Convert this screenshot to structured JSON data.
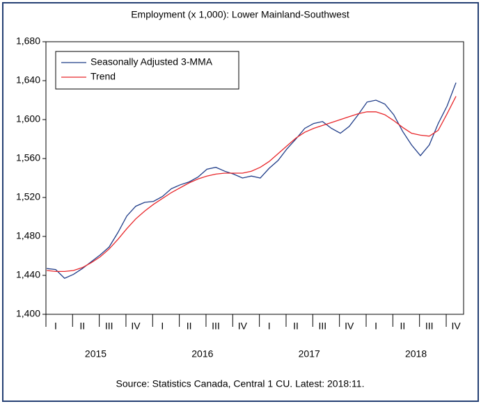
{
  "chart_data": {
    "type": "line",
    "title": "Employment (x 1,000): Lower Mainland-Southwest",
    "source": "Source:  Statistics Canada, Central 1 CU. Latest: 2018:11.",
    "categories": [
      null,
      "I",
      null,
      null,
      "II",
      null,
      null,
      "III",
      null,
      null,
      "IV",
      null,
      null,
      "I",
      null,
      null,
      "II",
      null,
      null,
      "III",
      null,
      null,
      "IV",
      null,
      null,
      "I",
      null,
      null,
      "II",
      null,
      null,
      "III",
      null,
      null,
      "IV",
      null,
      null,
      "I",
      null,
      null,
      "II",
      null,
      null,
      "III",
      null,
      null,
      "IV"
    ],
    "years": [
      "2015",
      "2016",
      "2017",
      "2018"
    ],
    "series": [
      {
        "name": "Seasonally Adjusted 3-MMA",
        "color": "#1f3c88",
        "values": [
          1447,
          1446,
          1437,
          1441,
          1447,
          1454,
          1461,
          1469,
          1484,
          1501,
          1511,
          1515,
          1516,
          1521,
          1529,
          1533,
          1536,
          1541,
          1549,
          1551,
          1547,
          1544,
          1540,
          1542,
          1540,
          1550,
          1558,
          1570,
          1580,
          1591,
          1596,
          1598,
          1591,
          1586,
          1593,
          1605,
          1618,
          1620,
          1616,
          1605,
          1588,
          1574,
          1563,
          1574,
          1596,
          1614,
          1638
        ]
      },
      {
        "name": "Trend",
        "color": "#e8262a",
        "values": [
          1445,
          1444,
          1444,
          1445,
          1448,
          1453,
          1459,
          1467,
          1477,
          1488,
          1498,
          1506,
          1513,
          1519,
          1525,
          1530,
          1535,
          1539,
          1542,
          1544,
          1545,
          1545,
          1545,
          1547,
          1551,
          1557,
          1565,
          1573,
          1581,
          1587,
          1591,
          1594,
          1597,
          1600,
          1603,
          1606,
          1608,
          1608,
          1605,
          1599,
          1592,
          1586,
          1584,
          1583,
          1589,
          1606,
          1624
        ]
      }
    ],
    "ylim": [
      1400,
      1680
    ],
    "yticks": [
      {
        "value": 1400,
        "label": "1,400"
      },
      {
        "value": 1440,
        "label": "1,440"
      },
      {
        "value": 1480,
        "label": "1,480"
      },
      {
        "value": 1520,
        "label": "1,520"
      },
      {
        "value": 1560,
        "label": "1,560"
      },
      {
        "value": 1600,
        "label": "1,600"
      },
      {
        "value": 1640,
        "label": "1,640"
      },
      {
        "value": 1680,
        "label": "1,680"
      }
    ],
    "legend": "upper left"
  }
}
